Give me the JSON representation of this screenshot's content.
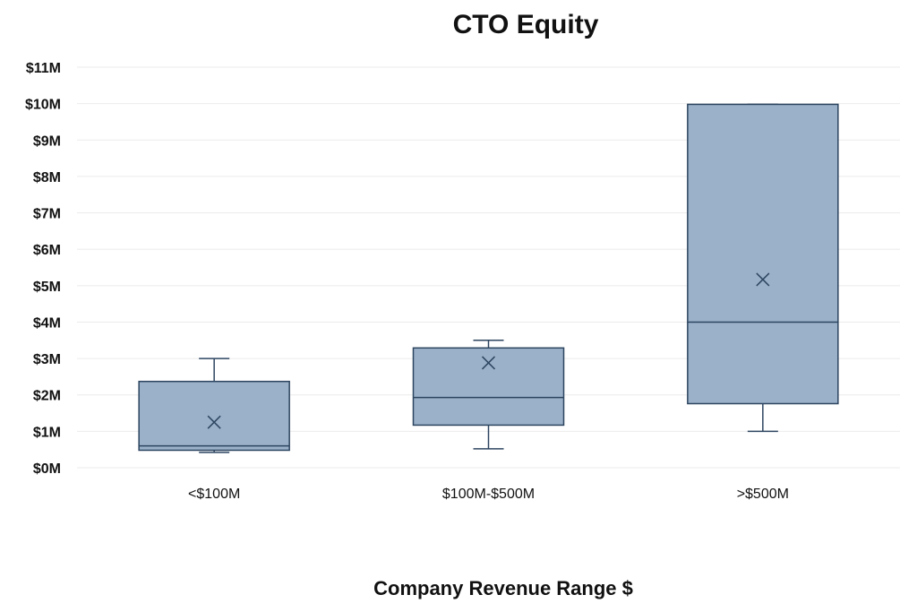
{
  "chart_data": {
    "type": "box",
    "title": "CTO Equity",
    "xlabel": "Company Revenue Range $",
    "ylabel": "",
    "ylim": [
      0,
      11000000
    ],
    "yticks": [
      {
        "value": 0,
        "label": "$0M"
      },
      {
        "value": 1000000,
        "label": "$1M"
      },
      {
        "value": 2000000,
        "label": "$2M"
      },
      {
        "value": 3000000,
        "label": "$3M"
      },
      {
        "value": 4000000,
        "label": "$4M"
      },
      {
        "value": 5000000,
        "label": "$5M"
      },
      {
        "value": 6000000,
        "label": "$6M"
      },
      {
        "value": 7000000,
        "label": "$7M"
      },
      {
        "value": 8000000,
        "label": "$8M"
      },
      {
        "value": 9000000,
        "label": "$9M"
      },
      {
        "value": 10000000,
        "label": "$10M"
      },
      {
        "value": 11000000,
        "label": "$11M"
      }
    ],
    "grid": true,
    "categories": [
      "<$100M",
      "$100M-$500M",
      ">$500M"
    ],
    "boxes": [
      {
        "category": "<$100M",
        "min": 420000,
        "q1": 480000,
        "median": 600000,
        "q3": 2370000,
        "max": 3000000,
        "mean": 1250000
      },
      {
        "category": "$100M-$500M",
        "min": 520000,
        "q1": 1170000,
        "median": 1930000,
        "q3": 3290000,
        "max": 3500000,
        "mean": 2880000
      },
      {
        "category": ">$500M",
        "min": 1000000,
        "q1": 1760000,
        "median": 4000000,
        "q3": 9980000,
        "max": 9980000,
        "mean": 5170000
      }
    ],
    "colors": {
      "fill": "#9bb1c9",
      "stroke": "#2d4560",
      "grid": "#ebebeb"
    }
  }
}
